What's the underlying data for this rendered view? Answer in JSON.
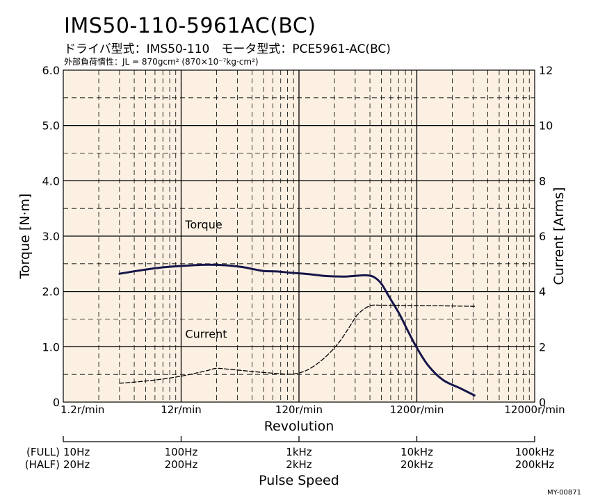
{
  "title": "IMS50-110-5961AC(BC)",
  "subtitle": "ドライバ型式：IMS50-110　モータ型式：PCE5961-AC(BC)",
  "inertia": "外部負荷慣性：JL = 870gcm² (870×10⁻⁷kg·cm²)",
  "colors": {
    "background": "#fbf0e2",
    "torque": "#16164a",
    "current": "#000000"
  },
  "footer_code": "MY-00871",
  "chart_data": {
    "type": "line",
    "xscale": "log",
    "xlabel": "Revolution",
    "xlim": [
      1.2,
      12000
    ],
    "xticks": [
      1.2,
      12,
      120,
      1200,
      12000
    ],
    "xtick_labels": [
      "1.2r/min",
      "12r/min",
      "120r/min",
      "1200r/min",
      "12000r/min"
    ],
    "ylabel": "Torque [N·m]",
    "ylim": [
      0,
      6
    ],
    "yticks": [
      0,
      1,
      2,
      3,
      4,
      5,
      6
    ],
    "ytick_labels": [
      "0",
      "1.0",
      "2.0",
      "3.0",
      "4.0",
      "5.0",
      "6.0"
    ],
    "y2label": "Current [Arms]",
    "y2lim": [
      0,
      12
    ],
    "y2ticks": [
      0,
      2,
      4,
      6,
      8,
      10,
      12
    ],
    "y2tick_labels": [
      "0",
      "2",
      "4",
      "6",
      "8",
      "10",
      "12"
    ],
    "grid": true,
    "series": [
      {
        "name": "Torque",
        "axis": "left",
        "style": "solid",
        "x": [
          3.6,
          5,
          8,
          12,
          18,
          24,
          30,
          40,
          50,
          60,
          80,
          100,
          150,
          200,
          300,
          400,
          460,
          520,
          600,
          700,
          850,
          1000,
          1200,
          1500,
          2000,
          2800,
          3700
        ],
        "y": [
          2.32,
          2.37,
          2.43,
          2.46,
          2.48,
          2.48,
          2.47,
          2.44,
          2.4,
          2.37,
          2.36,
          2.34,
          2.31,
          2.28,
          2.27,
          2.29,
          2.29,
          2.26,
          2.14,
          1.9,
          1.6,
          1.3,
          0.98,
          0.66,
          0.4,
          0.25,
          0.12
        ]
      },
      {
        "name": "Current",
        "axis": "right",
        "style": "dashed",
        "x": [
          3.6,
          6,
          10,
          15,
          20,
          24,
          30,
          40,
          50,
          60,
          80,
          100,
          120,
          150,
          200,
          260,
          320,
          380,
          480,
          600,
          800,
          1200,
          2000,
          3700
        ],
        "y": [
          0.68,
          0.76,
          0.88,
          1.02,
          1.14,
          1.22,
          1.19,
          1.14,
          1.1,
          1.07,
          1.03,
          1.01,
          1.05,
          1.22,
          1.62,
          2.14,
          2.7,
          3.18,
          3.48,
          3.5,
          3.5,
          3.49,
          3.48,
          3.46
        ]
      }
    ],
    "annotations": [
      {
        "text": "Torque",
        "x": 13,
        "y": 3.14,
        "axis": "left"
      },
      {
        "text": "Current",
        "x": 13,
        "y": 1.16,
        "axis": "left"
      }
    ],
    "pulse_axis": {
      "label": "Pulse Speed",
      "full_label": "(FULL)",
      "half_label": "(HALF)",
      "full": [
        "10Hz",
        "100Hz",
        "1kHz",
        "10kHz",
        "100kHz"
      ],
      "half": [
        "20Hz",
        "200Hz",
        "2kHz",
        "20kHz",
        "200kHz"
      ]
    }
  }
}
